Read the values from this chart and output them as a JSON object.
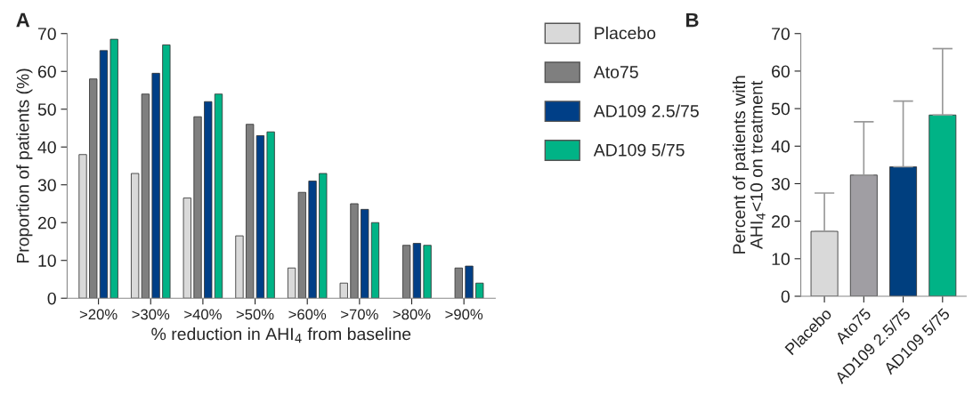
{
  "chart_data": [
    {
      "type": "bar",
      "xlabel": "% reduction in AHI$_{4}$ from baseline",
      "ylabel": "Proportion of patients (%)",
      "annotations": [
        "A"
      ],
      "categories": [
        ">20%",
        ">30%",
        ">40%",
        ">50%",
        ">60%",
        ">70%",
        ">80%",
        ">90%"
      ],
      "series": [
        {
          "name": "Placebo",
          "color": "#d9d9d9",
          "values": [
            38,
            33,
            26.5,
            16.5,
            8,
            4,
            null,
            null
          ]
        },
        {
          "name": "Ato75",
          "color": "#7f7f7f",
          "values": [
            58,
            54,
            48,
            46,
            28,
            25,
            14,
            8
          ]
        },
        {
          "name": "AD109 2.5/75",
          "color": "#003f87",
          "values": [
            65.5,
            59.5,
            52,
            43,
            31,
            23.5,
            14.5,
            8.5
          ]
        },
        {
          "name": "AD109 5/75",
          "color": "#00b386",
          "values": [
            68.5,
            67,
            54,
            44,
            33,
            20,
            14,
            4
          ]
        }
      ],
      "ylim": [
        0,
        70
      ],
      "yticks": [
        0,
        10,
        20,
        30,
        40,
        50,
        60,
        70
      ],
      "grid": false,
      "legend": "right"
    },
    {
      "type": "bar",
      "ylabel": "Percent of patients with\nAHI$_{4}$<10 on treatment",
      "annotations": [
        "B"
      ],
      "categories": [
        "Placebo",
        "Ato75",
        "AD109 2.5/75",
        "AD109 5/75"
      ],
      "values": [
        17.3,
        32.3,
        34.5,
        48.3
      ],
      "colors": [
        "#d9d9d9",
        "#a09ea3",
        "#003f7f",
        "#00b386"
      ],
      "errors": [
        [
          17.3,
          27.5
        ],
        [
          32.3,
          46.5
        ],
        [
          34.5,
          52
        ],
        [
          48.3,
          66
        ]
      ],
      "ylim": [
        0,
        70
      ],
      "yticks": [
        0,
        10,
        20,
        30,
        40,
        50,
        60,
        70
      ],
      "grid": false
    }
  ]
}
